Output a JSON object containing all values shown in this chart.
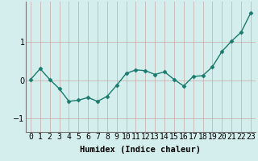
{
  "x": [
    0,
    1,
    2,
    3,
    4,
    5,
    6,
    7,
    8,
    9,
    10,
    11,
    12,
    13,
    14,
    15,
    16,
    17,
    18,
    19,
    20,
    21,
    22,
    23
  ],
  "y": [
    0.02,
    0.3,
    0.02,
    -0.22,
    -0.55,
    -0.52,
    -0.45,
    -0.55,
    -0.42,
    -0.13,
    0.18,
    0.27,
    0.25,
    0.15,
    0.22,
    0.02,
    -0.15,
    0.1,
    0.12,
    0.35,
    0.75,
    1.02,
    1.25,
    1.75
  ],
  "line_color": "#1a7a6e",
  "marker": "D",
  "markersize": 2.5,
  "linewidth": 1.0,
  "bg_color": "#d4eeed",
  "plot_bg_color": "#d4eeed",
  "grid_color_v": "#c8dede",
  "grid_color_h": "#c8a8a8",
  "xlabel": "Humidex (Indice chaleur)",
  "yticks": [
    -1,
    0,
    1
  ],
  "ylim": [
    -1.35,
    2.05
  ],
  "xlim": [
    -0.5,
    23.5
  ],
  "xlabel_fontsize": 7.5,
  "tick_fontsize": 7
}
